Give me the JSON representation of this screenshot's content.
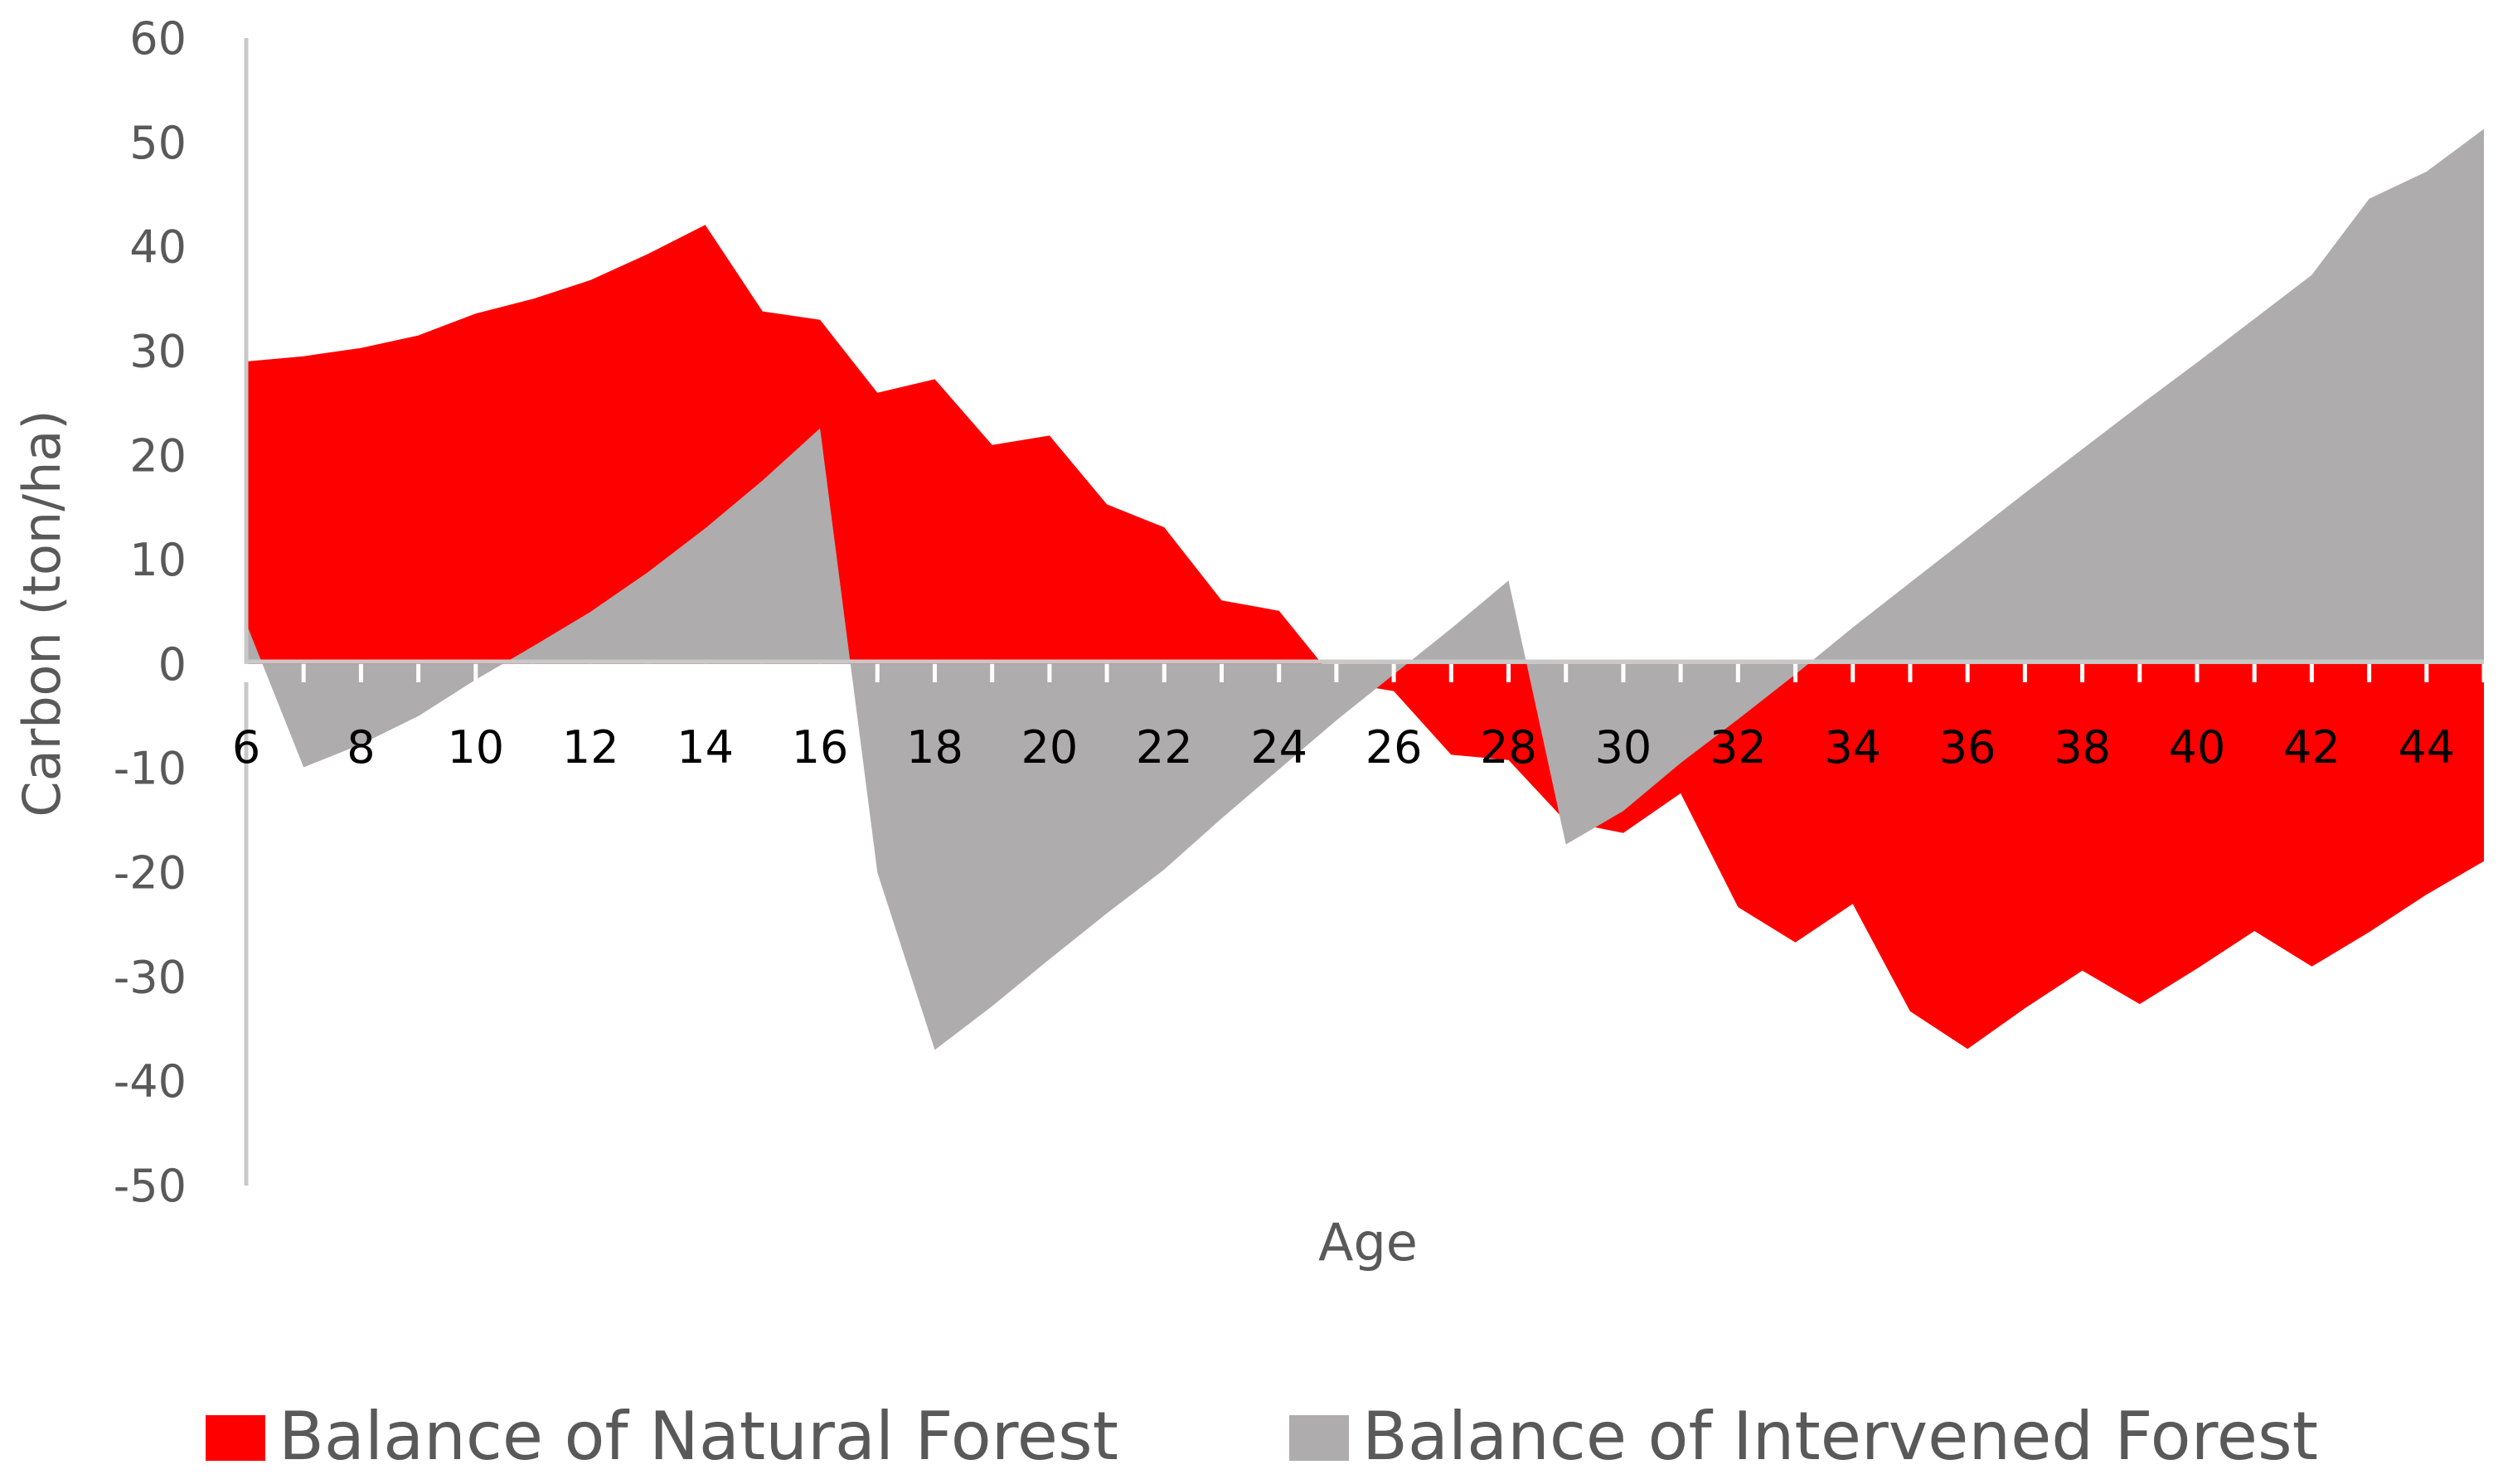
{
  "chart_data": {
    "type": "area",
    "title": "",
    "xlabel": "Age",
    "ylabel": "Carbon (ton/ha)",
    "xlim": [
      6,
      45
    ],
    "ylim": [
      -50,
      60
    ],
    "yticks": [
      60,
      50,
      40,
      30,
      20,
      10,
      0,
      -10,
      -20,
      -30,
      -40,
      -50
    ],
    "xticks": [
      6,
      8,
      10,
      12,
      14,
      16,
      18,
      20,
      22,
      24,
      26,
      28,
      30,
      32,
      34,
      36,
      38,
      40,
      42,
      44
    ],
    "grid": false,
    "legend_position": "bottom",
    "x": [
      6,
      7,
      8,
      9,
      10,
      11,
      12,
      13,
      14,
      15,
      16,
      17,
      18,
      19,
      20,
      21,
      22,
      23,
      24,
      25,
      26,
      27,
      28,
      29,
      30,
      31,
      32,
      33,
      34,
      35,
      36,
      37,
      38,
      39,
      40,
      41,
      42,
      43,
      44,
      45
    ],
    "series": [
      {
        "name": "Balance of Natural Forest",
        "color": "#ff0000",
        "values": [
          29,
          29.5,
          30.3,
          31.5,
          33.6,
          35,
          36.8,
          39.3,
          42.1,
          33.8,
          33,
          26,
          27.3,
          21,
          21.9,
          15.3,
          13.1,
          6.1,
          5.1,
          -1.7,
          -2.6,
          -8.7,
          -9.2,
          -15.1,
          -16.2,
          -12.4,
          -23.3,
          -26.7,
          -23,
          -33.3,
          -36.9,
          -33,
          -29.4,
          -32.6,
          -29.2,
          -25.6,
          -29,
          -25.7,
          -22.1,
          -18.9
        ]
      },
      {
        "name": "Balance of Intervened Forest",
        "color": "#aeacac",
        "values": [
          3.9,
          -9.9,
          -7.7,
          -5,
          -1.5,
          1.7,
          5,
          8.8,
          13,
          17.6,
          22.6,
          -20,
          -37,
          -32.8,
          -28.3,
          -23.9,
          -19.7,
          -14.8,
          -10.1,
          -5.4,
          -1,
          3.4,
          8,
          -17.3,
          -14.1,
          -9.5,
          -5.3,
          -1,
          3.5,
          7.8,
          12.1,
          16.4,
          20.6,
          24.8,
          28.9,
          33.1,
          37.3,
          44.6,
          47.2,
          51.3
        ]
      }
    ]
  }
}
